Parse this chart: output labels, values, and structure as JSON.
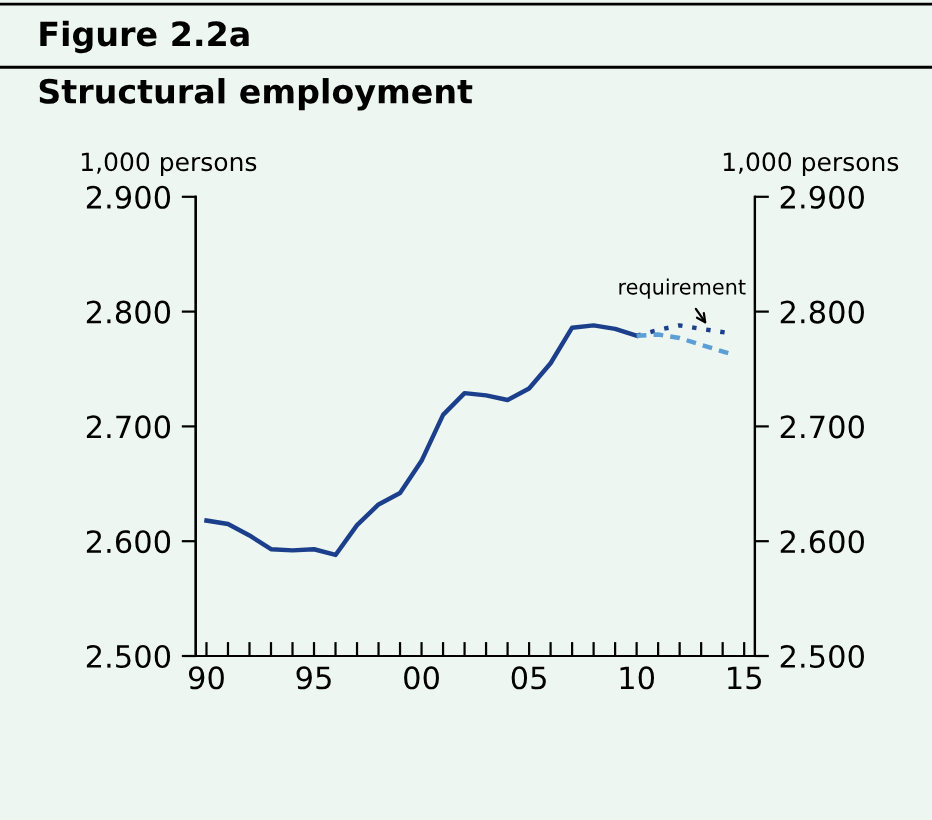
{
  "chart_data": {
    "type": "line",
    "title": "Figure 2.2a",
    "subtitle": "Structural employment",
    "ylabel": "1,000 persons",
    "y2label": "1,000 persons",
    "series": [
      {
        "color": "#1c3f8c",
        "line_style": "solid",
        "x": [
          1990,
          1991,
          1992,
          1993,
          1994,
          1995,
          1996,
          1997,
          1998,
          1999,
          2000,
          2001,
          2002,
          2003,
          2004,
          2005,
          2006,
          2007,
          2008,
          2009,
          2010
        ],
        "values": [
          2.618,
          2.615,
          2.605,
          2.593,
          2.592,
          2.593,
          2.588,
          2.614,
          2.632,
          2.642,
          2.67,
          2.71,
          2.729,
          2.727,
          2.723,
          2.733,
          2.755,
          2.786,
          2.788,
          2.785,
          2.779
        ]
      },
      {
        "color": "#1c3f8c",
        "line_style": "dotted",
        "x": [
          2010,
          2011,
          2012,
          2013,
          2014.4
        ],
        "values": [
          2.779,
          2.784,
          2.788,
          2.785,
          2.781
        ]
      },
      {
        "color": "#5b9fd4",
        "line_style": "dashed",
        "x": [
          2010,
          2011,
          2012,
          2013,
          2014.4
        ],
        "values": [
          2.779,
          2.78,
          2.777,
          2.771,
          2.763
        ]
      }
    ],
    "annotations": [
      {
        "text": "requirement",
        "x": 2013.4,
        "y": 2.785
      }
    ],
    "xlim": [
      1989.5,
      2015.5
    ],
    "xticks": [
      {
        "value": 1990,
        "label": "90"
      },
      {
        "value": 1991,
        "label": null
      },
      {
        "value": 1992,
        "label": null
      },
      {
        "value": 1993,
        "label": null
      },
      {
        "value": 1994,
        "label": null
      },
      {
        "value": 1995,
        "label": "95"
      },
      {
        "value": 1996,
        "label": null
      },
      {
        "value": 1997,
        "label": null
      },
      {
        "value": 1998,
        "label": null
      },
      {
        "value": 1999,
        "label": null
      },
      {
        "value": 2000,
        "label": "00"
      },
      {
        "value": 2001,
        "label": null
      },
      {
        "value": 2002,
        "label": null
      },
      {
        "value": 2003,
        "label": null
      },
      {
        "value": 2004,
        "label": null
      },
      {
        "value": 2005,
        "label": "05"
      },
      {
        "value": 2006,
        "label": null
      },
      {
        "value": 2007,
        "label": null
      },
      {
        "value": 2008,
        "label": null
      },
      {
        "value": 2009,
        "label": null
      },
      {
        "value": 2010,
        "label": "10"
      },
      {
        "value": 2011,
        "label": null
      },
      {
        "value": 2012,
        "label": null
      },
      {
        "value": 2013,
        "label": null
      },
      {
        "value": 2014,
        "label": null
      },
      {
        "value": 2015,
        "label": "15"
      }
    ],
    "ylim": [
      2.5,
      2.9
    ],
    "yticks": [
      {
        "value": 2.5,
        "label": "2.500"
      },
      {
        "value": 2.6,
        "label": "2.600"
      },
      {
        "value": 2.7,
        "label": "2.700"
      },
      {
        "value": 2.8,
        "label": "2.800"
      },
      {
        "value": 2.9,
        "label": "2.900"
      }
    ],
    "y2lim": [
      2.5,
      2.9
    ],
    "y2ticks": [
      {
        "value": 2.5,
        "label": "2.500"
      },
      {
        "value": 2.6,
        "label": "2.600"
      },
      {
        "value": 2.7,
        "label": "2.700"
      },
      {
        "value": 2.8,
        "label": "2.800"
      },
      {
        "value": 2.9,
        "label": "2.900"
      }
    ],
    "grid": false,
    "legend": false,
    "marker": "none"
  }
}
